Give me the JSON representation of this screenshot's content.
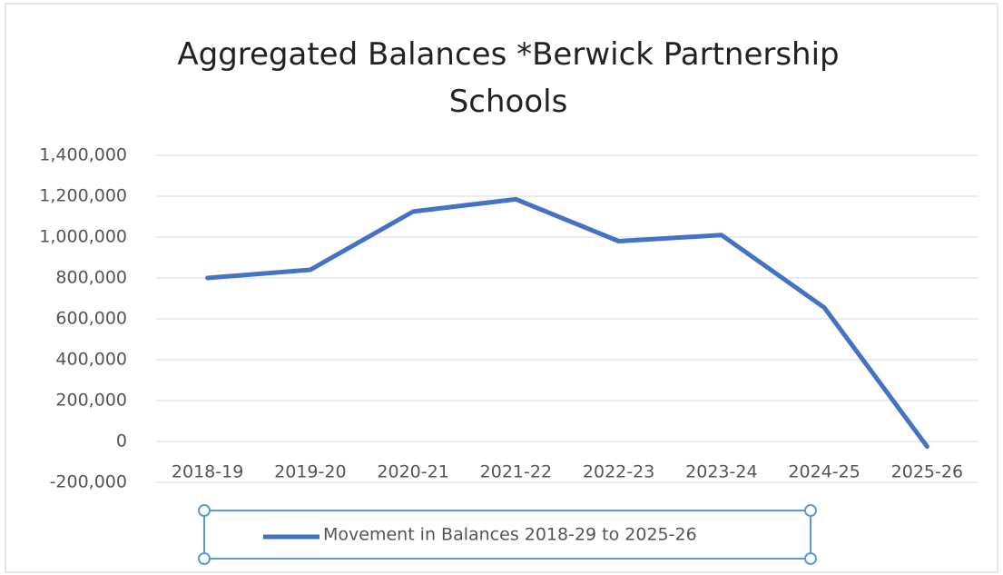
{
  "chart_data": {
    "type": "line",
    "title": "Aggregated Balances *Berwick Partnership Schools",
    "categories": [
      "2018-19",
      "2019-20",
      "2020-21",
      "2021-22",
      "2022-23",
      "2023-24",
      "2024-25",
      "2025-26"
    ],
    "series": [
      {
        "name": "Movement in Balances 2018-29 to 2025-26",
        "color": "#4472c4",
        "values": [
          800000,
          840000,
          1125000,
          1185000,
          980000,
          1010000,
          655000,
          -25000
        ]
      }
    ],
    "ylim": [
      -200000,
      1400000
    ],
    "yticks": [
      {
        "value": -200000,
        "label": "-200,000"
      },
      0,
      {
        "value": 200000,
        "label": "200,000"
      },
      {
        "value": 400000,
        "label": "400,000"
      },
      {
        "value": 600000,
        "label": "600,000"
      },
      {
        "value": 800000,
        "label": "800,000"
      },
      {
        "value": 1000000,
        "label": "1,000,000"
      },
      {
        "value": 1200000,
        "label": "1,200,000"
      },
      {
        "value": 1400000,
        "label": "1,400,000"
      }
    ],
    "negative_tick_color": "#ff0000",
    "grid": true,
    "legend": "bottom"
  }
}
